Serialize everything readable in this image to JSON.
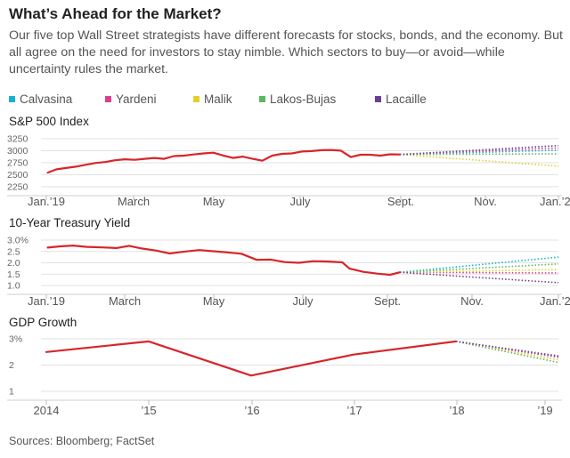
{
  "header": {
    "title": "What’s Ahead for the Market?",
    "subtitle": "Our five top Wall Street strategists have different forecasts for stocks, bonds, and the economy. But all agree on the need for investors to stay nimble. Which sectors to buy—or avoid—while uncertainty rules the market."
  },
  "legend": {
    "items": [
      {
        "label": "Calvasina",
        "color": "#1aaed4"
      },
      {
        "label": "Yardeni",
        "color": "#d9418f"
      },
      {
        "label": "Malik",
        "color": "#e3cf2b"
      },
      {
        "label": "Lakos-Bujas",
        "color": "#5cb85c"
      },
      {
        "label": "Lacaille",
        "color": "#6a3d9a"
      }
    ]
  },
  "colors": {
    "actual": "#d7262a",
    "axis": "#888888",
    "grid": "#e2e2e2"
  },
  "source": "Sources: Bloomberg; FactSet",
  "chart_data": [
    {
      "type": "line",
      "title": "S&P 500 Index",
      "y_ticks": [
        "3250",
        "3000",
        "2750",
        "2500",
        "2250"
      ],
      "ylim": [
        2200,
        3250
      ],
      "x_ticks": [
        "Jan.’19",
        "March",
        "May",
        "July",
        "Sept.",
        "Nov.",
        "Jan.’20"
      ],
      "xlim": [
        "2019-01-01",
        "2020-01-01"
      ],
      "series": [
        {
          "role": "actual",
          "x": [
            "2019-01-02",
            "2019-01-08",
            "2019-01-15",
            "2019-01-22",
            "2019-01-29",
            "2019-02-05",
            "2019-02-12",
            "2019-02-19",
            "2019-02-26",
            "2019-03-05",
            "2019-03-12",
            "2019-03-19",
            "2019-03-26",
            "2019-04-02",
            "2019-04-09",
            "2019-04-16",
            "2019-04-23",
            "2019-04-30",
            "2019-05-07",
            "2019-05-14",
            "2019-05-21",
            "2019-05-28",
            "2019-06-04",
            "2019-06-11",
            "2019-06-18",
            "2019-06-25",
            "2019-07-02",
            "2019-07-09",
            "2019-07-16",
            "2019-07-23",
            "2019-07-30",
            "2019-08-06",
            "2019-08-13",
            "2019-08-20",
            "2019-08-27",
            "2019-09-03",
            "2019-09-10"
          ],
          "y": [
            2510,
            2580,
            2610,
            2640,
            2680,
            2720,
            2740,
            2780,
            2800,
            2790,
            2810,
            2830,
            2810,
            2870,
            2880,
            2905,
            2930,
            2945,
            2885,
            2830,
            2860,
            2810,
            2770,
            2880,
            2920,
            2930,
            2970,
            2980,
            3000,
            3005,
            2990,
            2850,
            2900,
            2900,
            2880,
            2910,
            2905
          ]
        },
        {
          "name": "Calvasina",
          "color": "#1aaed4",
          "x": [
            "2019-09-10",
            "2020-01-01"
          ],
          "y": [
            2905,
            3000
          ]
        },
        {
          "name": "Yardeni",
          "color": "#d9418f",
          "x": [
            "2019-09-10",
            "2020-01-01"
          ],
          "y": [
            2905,
            3050
          ]
        },
        {
          "name": "Malik",
          "color": "#e3cf2b",
          "x": [
            "2019-09-10",
            "2020-01-01"
          ],
          "y": [
            2905,
            2650
          ]
        },
        {
          "name": "Lakos-Bujas",
          "color": "#5cb85c",
          "x": [
            "2019-09-10",
            "2020-01-01"
          ],
          "y": [
            2905,
            2920
          ]
        },
        {
          "name": "Lacaille",
          "color": "#6a3d9a",
          "x": [
            "2019-09-10",
            "2020-01-01"
          ],
          "y": [
            2905,
            3100
          ]
        }
      ]
    },
    {
      "type": "line",
      "title": "10-Year Treasury Yield",
      "y_ticks": [
        "3.0%",
        "2.5",
        "2.0",
        "1.5",
        "1.0"
      ],
      "ylim": [
        1.0,
        3.0
      ],
      "x_ticks": [
        "Jan.’19",
        "March",
        "May",
        "July",
        "Sept.",
        "Nov.",
        "Jan.’20"
      ],
      "xlim": [
        "2019-01-01",
        "2020-01-01"
      ],
      "series": [
        {
          "role": "actual",
          "x": [
            "2019-01-02",
            "2019-01-10",
            "2019-01-20",
            "2019-01-30",
            "2019-02-10",
            "2019-02-20",
            "2019-03-01",
            "2019-03-10",
            "2019-03-20",
            "2019-03-30",
            "2019-04-10",
            "2019-04-20",
            "2019-04-30",
            "2019-05-10",
            "2019-05-20",
            "2019-05-31",
            "2019-06-10",
            "2019-06-20",
            "2019-06-30",
            "2019-07-10",
            "2019-07-20",
            "2019-07-31",
            "2019-08-05",
            "2019-08-15",
            "2019-08-25",
            "2019-09-03",
            "2019-09-10"
          ],
          "y": [
            2.67,
            2.72,
            2.76,
            2.7,
            2.68,
            2.65,
            2.75,
            2.63,
            2.54,
            2.41,
            2.5,
            2.56,
            2.51,
            2.46,
            2.4,
            2.13,
            2.14,
            2.03,
            2.0,
            2.07,
            2.06,
            2.02,
            1.75,
            1.6,
            1.52,
            1.47,
            1.58
          ]
        },
        {
          "name": "Calvasina",
          "color": "#1aaed4",
          "x": [
            "2019-09-10",
            "2020-01-01"
          ],
          "y": [
            1.58,
            2.25
          ]
        },
        {
          "name": "Yardeni",
          "color": "#d9418f",
          "x": [
            "2019-09-10",
            "2020-01-01"
          ],
          "y": [
            1.58,
            1.55
          ]
        },
        {
          "name": "Malik",
          "color": "#e3cf2b",
          "x": [
            "2019-09-10",
            "2020-01-01"
          ],
          "y": [
            1.58,
            1.7
          ]
        },
        {
          "name": "Lakos-Bujas",
          "color": "#5cb85c",
          "x": [
            "2019-09-10",
            "2020-01-01"
          ],
          "y": [
            1.58,
            1.95
          ]
        },
        {
          "name": "Lacaille",
          "color": "#6a3d9a",
          "x": [
            "2019-09-10",
            "2020-01-01"
          ],
          "y": [
            1.58,
            1.12
          ]
        }
      ]
    },
    {
      "type": "line",
      "title": "GDP Growth",
      "y_ticks": [
        "3%",
        "2",
        "1"
      ],
      "ylim": [
        1,
        3
      ],
      "x_ticks": [
        "2014",
        "’15",
        "’16",
        "’17",
        "’18",
        "’19"
      ],
      "xlim": [
        2014,
        2019
      ],
      "series": [
        {
          "role": "actual",
          "x": [
            2014,
            2015,
            2016,
            2017,
            2018
          ],
          "y": [
            2.5,
            2.9,
            1.6,
            2.4,
            2.9
          ]
        },
        {
          "name": "Calvasina",
          "color": "#1aaed4",
          "x": [
            2018,
            2019
          ],
          "y": [
            2.9,
            2.3
          ]
        },
        {
          "name": "Yardeni",
          "color": "#d9418f",
          "x": [
            2018,
            2019
          ],
          "y": [
            2.9,
            2.3
          ]
        },
        {
          "name": "Malik",
          "color": "#e3cf2b",
          "x": [
            2018,
            2019
          ],
          "y": [
            2.9,
            2.2
          ]
        },
        {
          "name": "Lakos-Bujas",
          "color": "#5cb85c",
          "x": [
            2018,
            2019
          ],
          "y": [
            2.9,
            2.1
          ]
        },
        {
          "name": "Lacaille",
          "color": "#6a3d9a",
          "x": [
            2018,
            2019
          ],
          "y": [
            2.9,
            2.35
          ]
        }
      ]
    }
  ]
}
